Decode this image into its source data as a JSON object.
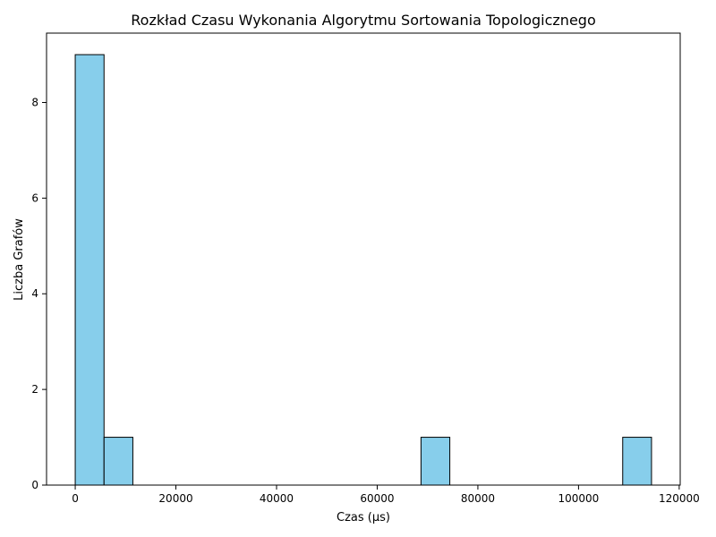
{
  "chart_data": {
    "type": "bar",
    "title": "Rozkład Czasu Wykonania Algorytmu Sortowania Topologicznego",
    "xlabel": "Czas (µs)",
    "ylabel": "Liczba Grafów",
    "xlim": [
      -5700,
      120200
    ],
    "ylim": [
      0,
      9.45
    ],
    "xticks": [
      0,
      20000,
      40000,
      60000,
      80000,
      100000,
      120000
    ],
    "yticks": [
      0,
      2,
      4,
      6,
      8
    ],
    "bins": [
      {
        "x0": 0,
        "x1": 5725,
        "count": 9
      },
      {
        "x0": 5725,
        "x1": 11450,
        "count": 1
      },
      {
        "x0": 68700,
        "x1": 74425,
        "count": 1
      },
      {
        "x0": 108775,
        "x1": 114500,
        "count": 1
      }
    ],
    "bar_color": "#87CEEB",
    "edge_color": "#000000",
    "grid": false,
    "legend": "none"
  }
}
